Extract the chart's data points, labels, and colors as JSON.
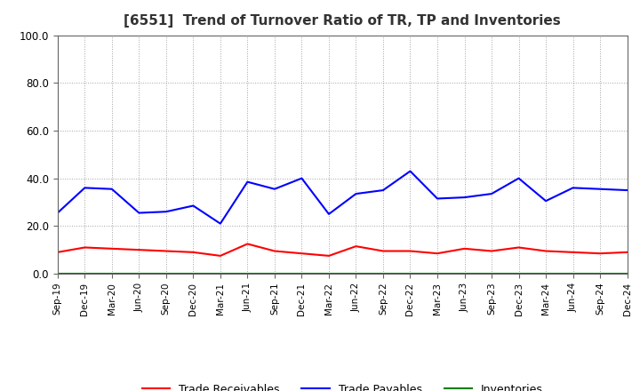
{
  "title": "[6551]  Trend of Turnover Ratio of TR, TP and Inventories",
  "x_labels": [
    "Sep-19",
    "Dec-19",
    "Mar-20",
    "Jun-20",
    "Sep-20",
    "Dec-20",
    "Mar-21",
    "Jun-21",
    "Sep-21",
    "Dec-21",
    "Mar-22",
    "Jun-22",
    "Sep-22",
    "Dec-22",
    "Mar-23",
    "Jun-23",
    "Sep-23",
    "Dec-23",
    "Mar-24",
    "Jun-24",
    "Sep-24",
    "Dec-24"
  ],
  "trade_receivables": [
    9.0,
    11.0,
    10.5,
    10.0,
    9.5,
    9.0,
    7.5,
    12.5,
    9.5,
    8.5,
    7.5,
    11.5,
    9.5,
    9.5,
    8.5,
    10.5,
    9.5,
    11.0,
    9.5,
    9.0,
    8.5,
    9.0
  ],
  "trade_payables": [
    25.5,
    36.0,
    35.5,
    25.5,
    26.0,
    28.5,
    21.0,
    38.5,
    35.5,
    40.0,
    25.0,
    33.5,
    35.0,
    43.0,
    31.5,
    32.0,
    33.5,
    40.0,
    30.5,
    36.0,
    35.5,
    35.0
  ],
  "inventories": [
    0.0,
    0.0,
    0.0,
    0.0,
    0.0,
    0.0,
    0.0,
    0.0,
    0.0,
    0.0,
    0.0,
    0.0,
    0.0,
    0.0,
    0.0,
    0.0,
    0.0,
    0.0,
    0.0,
    0.0,
    0.0,
    0.0
  ],
  "color_tr": "#FF0000",
  "color_tp": "#0000FF",
  "color_inv": "#008000",
  "ylim": [
    0.0,
    100.0
  ],
  "yticks": [
    0.0,
    20.0,
    40.0,
    60.0,
    80.0,
    100.0
  ],
  "background_color": "#FFFFFF",
  "plot_bg_color": "#F8F8F8",
  "grid_color": "#999999",
  "legend_labels": [
    "Trade Receivables",
    "Trade Payables",
    "Inventories"
  ]
}
